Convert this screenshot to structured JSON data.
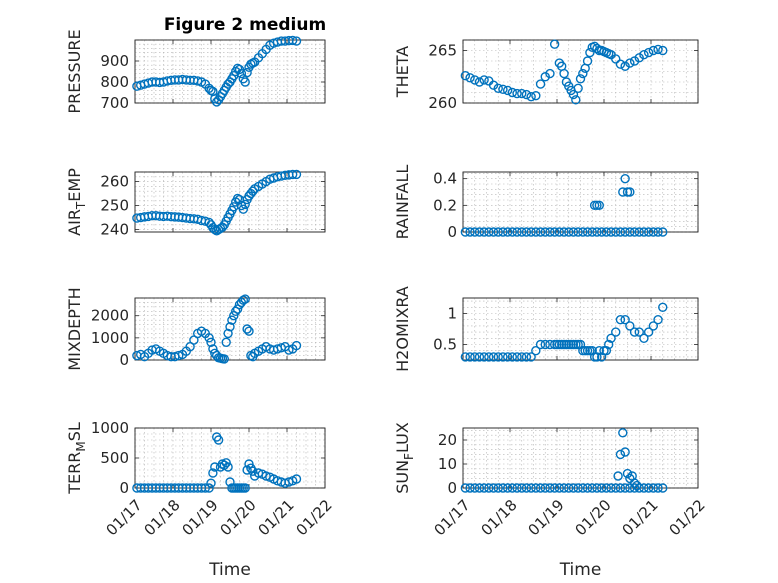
{
  "title": "Figure 2 medium",
  "colors": {
    "marker": "#0072bd",
    "axis": "#262626",
    "grid": "#b3b3b3"
  },
  "x_ticks": [
    "01/17",
    "01/18",
    "01/19",
    "01/20",
    "01/21",
    "01/22"
  ],
  "chart_data": [
    {
      "type": "scatter",
      "ylabel": "PRESSURE",
      "xlabel": "",
      "xlim": [
        0,
        5
      ],
      "ylim": [
        700,
        1000
      ],
      "yticks": [
        700,
        800,
        900
      ],
      "x": [
        0.05,
        0.15,
        0.25,
        0.35,
        0.45,
        0.55,
        0.65,
        0.75,
        0.85,
        0.95,
        1.05,
        1.15,
        1.25,
        1.35,
        1.45,
        1.55,
        1.65,
        1.75,
        1.85,
        1.95,
        2.0,
        2.05,
        2.1,
        2.15,
        2.2,
        2.25,
        2.3,
        2.35,
        2.4,
        2.45,
        2.5,
        2.55,
        2.6,
        2.65,
        2.7,
        2.75,
        2.8,
        2.85,
        2.9,
        2.95,
        3.0,
        3.05,
        3.1,
        3.15,
        3.25,
        3.35,
        3.45,
        3.55,
        3.65,
        3.75,
        3.85,
        3.95,
        4.05,
        4.15,
        4.25
      ],
      "y": [
        780,
        785,
        790,
        795,
        800,
        800,
        798,
        800,
        805,
        808,
        810,
        810,
        812,
        810,
        808,
        808,
        805,
        800,
        790,
        770,
        760,
        755,
        720,
        705,
        715,
        730,
        745,
        760,
        775,
        790,
        800,
        815,
        830,
        850,
        865,
        860,
        840,
        815,
        800,
        845,
        870,
        885,
        890,
        895,
        915,
        935,
        955,
        975,
        985,
        990,
        995,
        995,
        997,
        998,
        995
      ]
    },
    {
      "type": "scatter",
      "ylabel": "THETA",
      "xlabel": "",
      "xlim": [
        0,
        5
      ],
      "ylim": [
        260,
        266
      ],
      "yticks": [
        260,
        265
      ],
      "x": [
        0.05,
        0.15,
        0.25,
        0.35,
        0.45,
        0.55,
        0.65,
        0.75,
        0.85,
        0.95,
        1.05,
        1.15,
        1.25,
        1.35,
        1.45,
        1.55,
        1.65,
        1.75,
        1.85,
        1.95,
        2.05,
        2.1,
        2.15,
        2.2,
        2.25,
        2.3,
        2.35,
        2.4,
        2.45,
        2.5,
        2.55,
        2.6,
        2.65,
        2.7,
        2.75,
        2.8,
        2.85,
        2.9,
        2.95,
        3.0,
        3.05,
        3.1,
        3.15,
        3.25,
        3.35,
        3.45,
        3.55,
        3.65,
        3.75,
        3.85,
        3.95,
        4.05,
        4.15,
        4.25
      ],
      "y": [
        262.6,
        262.4,
        262.2,
        262.0,
        262.2,
        262.1,
        261.7,
        261.4,
        261.3,
        261.2,
        261.0,
        260.9,
        260.9,
        260.8,
        260.6,
        260.7,
        261.8,
        262.5,
        262.8,
        265.6,
        263.8,
        263.5,
        262.8,
        262.0,
        261.6,
        261.2,
        260.8,
        260.3,
        261.4,
        262.3,
        262.8,
        263.3,
        264.0,
        264.8,
        265.3,
        265.4,
        265.2,
        265.0,
        265.0,
        264.9,
        264.8,
        264.7,
        264.6,
        264.2,
        263.7,
        263.5,
        263.8,
        264.0,
        264.3,
        264.6,
        264.8,
        265.0,
        265.1,
        265.0
      ]
    },
    {
      "type": "scatter",
      "ylabel": "AIR_TEMP",
      "xlabel": "",
      "xlim": [
        0,
        5
      ],
      "ylim": [
        239,
        264
      ],
      "yticks": [
        240,
        250,
        260
      ],
      "x": [
        0.05,
        0.15,
        0.25,
        0.35,
        0.45,
        0.55,
        0.65,
        0.75,
        0.85,
        0.95,
        1.05,
        1.15,
        1.25,
        1.35,
        1.45,
        1.55,
        1.65,
        1.75,
        1.85,
        1.95,
        2.0,
        2.05,
        2.1,
        2.15,
        2.2,
        2.25,
        2.3,
        2.35,
        2.4,
        2.45,
        2.5,
        2.55,
        2.6,
        2.65,
        2.7,
        2.75,
        2.8,
        2.85,
        2.9,
        2.95,
        3.0,
        3.05,
        3.1,
        3.15,
        3.25,
        3.35,
        3.45,
        3.55,
        3.65,
        3.75,
        3.85,
        3.95,
        4.05,
        4.15,
        4.25
      ],
      "y": [
        244.8,
        245.0,
        245.3,
        245.5,
        245.8,
        245.8,
        245.6,
        245.5,
        245.6,
        245.4,
        245.3,
        245.2,
        245.0,
        244.8,
        244.6,
        244.5,
        244.3,
        243.8,
        243.5,
        243.0,
        242.0,
        240.8,
        240.0,
        239.5,
        240.0,
        240.5,
        241.0,
        242.0,
        243.5,
        245.0,
        246.5,
        248.0,
        249.5,
        251.5,
        253.0,
        252.5,
        250.0,
        248.5,
        250.5,
        252.5,
        254.0,
        255.0,
        256.0,
        257.0,
        258.0,
        259.0,
        260.0,
        261.0,
        261.5,
        262.0,
        262.3,
        262.6,
        262.8,
        263.0,
        263.0
      ]
    },
    {
      "type": "scatter",
      "ylabel": "RAINFALL",
      "xlabel": "",
      "xlim": [
        0,
        5
      ],
      "ylim": [
        0,
        0.45
      ],
      "yticks": [
        0,
        0.2,
        0.4
      ],
      "x": [
        0.05,
        0.15,
        0.25,
        0.35,
        0.45,
        0.55,
        0.65,
        0.75,
        0.85,
        0.95,
        1.05,
        1.15,
        1.25,
        1.35,
        1.45,
        1.55,
        1.65,
        1.75,
        1.85,
        1.95,
        2.05,
        2.15,
        2.25,
        2.35,
        2.45,
        2.55,
        2.65,
        2.75,
        2.85,
        2.95,
        3.05,
        3.15,
        3.25,
        3.35,
        3.45,
        3.55,
        3.65,
        3.75,
        3.85,
        3.95,
        4.05,
        4.15,
        4.25,
        2.8,
        2.85,
        2.9,
        3.4,
        3.45,
        3.5,
        3.55
      ],
      "y": [
        0,
        0,
        0,
        0,
        0,
        0,
        0,
        0,
        0,
        0,
        0,
        0,
        0,
        0,
        0,
        0,
        0,
        0,
        0,
        0,
        0,
        0,
        0,
        0,
        0,
        0,
        0,
        0,
        0,
        0,
        0,
        0,
        0,
        0,
        0,
        0,
        0,
        0,
        0,
        0,
        0,
        0,
        0,
        0.2,
        0.2,
        0.2,
        0.3,
        0.4,
        0.3,
        0.3
      ]
    },
    {
      "type": "scatter",
      "ylabel": "MIXDEPTH",
      "xlabel": "",
      "xlim": [
        0,
        5
      ],
      "ylim": [
        0,
        2800
      ],
      "yticks": [
        0,
        1000,
        2000
      ],
      "x": [
        0.05,
        0.15,
        0.25,
        0.35,
        0.45,
        0.55,
        0.65,
        0.75,
        0.85,
        0.95,
        1.05,
        1.15,
        1.25,
        1.35,
        1.45,
        1.55,
        1.65,
        1.75,
        1.85,
        1.95,
        2.0,
        2.05,
        2.1,
        2.15,
        2.2,
        2.25,
        2.3,
        2.35,
        2.4,
        2.45,
        2.5,
        2.55,
        2.6,
        2.65,
        2.7,
        2.75,
        2.8,
        2.85,
        2.9,
        2.95,
        3.0,
        3.05,
        3.1,
        3.15,
        3.25,
        3.35,
        3.45,
        3.55,
        3.65,
        3.75,
        3.85,
        3.95,
        4.05,
        4.15,
        4.25
      ],
      "y": [
        200,
        250,
        150,
        300,
        450,
        500,
        400,
        300,
        200,
        150,
        150,
        200,
        250,
        400,
        600,
        900,
        1200,
        1300,
        1200,
        1000,
        800,
        500,
        300,
        200,
        100,
        80,
        60,
        50,
        800,
        1200,
        1500,
        1800,
        2000,
        2200,
        2300,
        2500,
        2600,
        2700,
        2750,
        1400,
        1300,
        200,
        150,
        300,
        400,
        500,
        600,
        500,
        450,
        500,
        550,
        600,
        450,
        500,
        650
      ]
    },
    {
      "type": "scatter",
      "ylabel": "H2OMIXRA",
      "xlabel": "",
      "xlim": [
        0,
        5
      ],
      "ylim": [
        0.25,
        1.25
      ],
      "yticks": [
        0.5,
        1
      ],
      "x": [
        0.05,
        0.15,
        0.25,
        0.35,
        0.45,
        0.55,
        0.65,
        0.75,
        0.85,
        0.95,
        1.05,
        1.15,
        1.25,
        1.35,
        1.45,
        1.55,
        1.65,
        1.75,
        1.85,
        1.95,
        2.0,
        2.05,
        2.1,
        2.15,
        2.2,
        2.25,
        2.3,
        2.35,
        2.4,
        2.45,
        2.5,
        2.55,
        2.6,
        2.65,
        2.7,
        2.75,
        2.8,
        2.85,
        2.9,
        2.95,
        3.0,
        3.05,
        3.1,
        3.15,
        3.25,
        3.35,
        3.45,
        3.55,
        3.65,
        3.75,
        3.85,
        3.95,
        4.05,
        4.15,
        4.25
      ],
      "y": [
        0.3,
        0.3,
        0.3,
        0.3,
        0.3,
        0.3,
        0.3,
        0.3,
        0.3,
        0.3,
        0.3,
        0.3,
        0.3,
        0.3,
        0.3,
        0.4,
        0.5,
        0.5,
        0.5,
        0.5,
        0.5,
        0.5,
        0.5,
        0.5,
        0.5,
        0.5,
        0.5,
        0.5,
        0.5,
        0.5,
        0.5,
        0.4,
        0.4,
        0.4,
        0.4,
        0.4,
        0.3,
        0.3,
        0.4,
        0.3,
        0.4,
        0.4,
        0.5,
        0.6,
        0.7,
        0.9,
        0.9,
        0.8,
        0.7,
        0.7,
        0.6,
        0.7,
        0.8,
        0.9,
        1.1
      ]
    },
    {
      "type": "scatter",
      "ylabel": "TERR_MSL",
      "xlabel": "Time",
      "xlim": [
        0,
        5
      ],
      "ylim": [
        0,
        1000
      ],
      "yticks": [
        0,
        500,
        1000
      ],
      "x": [
        0.05,
        0.15,
        0.25,
        0.35,
        0.45,
        0.55,
        0.65,
        0.75,
        0.85,
        0.95,
        1.05,
        1.15,
        1.25,
        1.35,
        1.45,
        1.55,
        1.65,
        1.75,
        1.85,
        1.95,
        2.0,
        2.05,
        2.1,
        2.15,
        2.2,
        2.25,
        2.3,
        2.35,
        2.4,
        2.45,
        2.5,
        2.55,
        2.6,
        2.65,
        2.7,
        2.75,
        2.8,
        2.85,
        2.9,
        2.95,
        3.0,
        3.05,
        3.1,
        3.15,
        3.25,
        3.35,
        3.45,
        3.55,
        3.65,
        3.75,
        3.85,
        3.95,
        4.05,
        4.15,
        4.25
      ],
      "y": [
        0,
        0,
        0,
        0,
        0,
        0,
        0,
        0,
        0,
        0,
        0,
        0,
        0,
        0,
        0,
        0,
        0,
        0,
        0,
        0,
        80,
        250,
        350,
        850,
        800,
        350,
        400,
        380,
        420,
        350,
        100,
        0,
        0,
        0,
        0,
        0,
        0,
        0,
        0,
        300,
        400,
        330,
        280,
        200,
        250,
        230,
        200,
        180,
        150,
        120,
        100,
        80,
        100,
        120,
        150
      ]
    },
    {
      "type": "scatter",
      "ylabel": "SUN_FLUX",
      "xlabel": "Time",
      "xlim": [
        0,
        5
      ],
      "ylim": [
        0,
        25
      ],
      "yticks": [
        0,
        10,
        20
      ],
      "x": [
        0.05,
        0.15,
        0.25,
        0.35,
        0.45,
        0.55,
        0.65,
        0.75,
        0.85,
        0.95,
        1.05,
        1.15,
        1.25,
        1.35,
        1.45,
        1.55,
        1.65,
        1.75,
        1.85,
        1.95,
        2.05,
        2.15,
        2.25,
        2.35,
        2.45,
        2.55,
        2.65,
        2.75,
        2.85,
        2.95,
        3.05,
        3.15,
        3.25,
        3.35,
        3.45,
        3.55,
        3.65,
        3.75,
        3.85,
        3.95,
        4.05,
        4.15,
        4.25,
        3.3,
        3.35,
        3.4,
        3.45,
        3.5,
        3.55,
        3.6,
        3.65,
        3.7
      ],
      "y": [
        0,
        0,
        0,
        0,
        0,
        0,
        0,
        0,
        0,
        0,
        0,
        0,
        0,
        0,
        0,
        0,
        0,
        0,
        0,
        0,
        0,
        0,
        0,
        0,
        0,
        0,
        0,
        0,
        0,
        0,
        0,
        0,
        0,
        0,
        0,
        0,
        0,
        0,
        0,
        0,
        0,
        0,
        0,
        5,
        14,
        23,
        15,
        6,
        4,
        5,
        2,
        1
      ]
    }
  ]
}
